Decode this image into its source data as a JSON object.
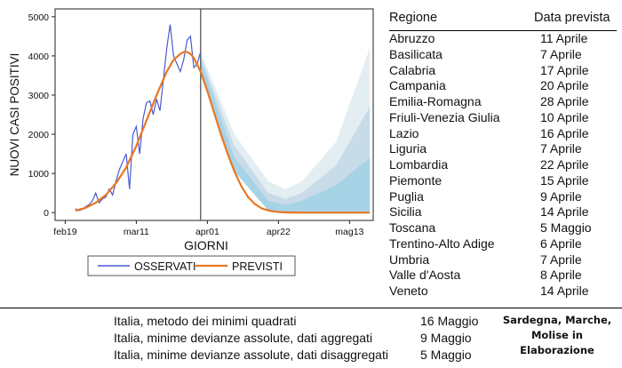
{
  "chart_data": {
    "type": "line",
    "xlabel": "GIORNI",
    "ylabel": "NUOVI CASI POSITIVI",
    "ylim": [
      -200,
      5200
    ],
    "yticks": [
      0,
      1000,
      2000,
      3000,
      4000,
      5000
    ],
    "x_tick_labels": [
      {
        "day": 0,
        "label": "feb19"
      },
      {
        "day": 21,
        "label": "mar11"
      },
      {
        "day": 42,
        "label": "apr01"
      },
      {
        "day": 63,
        "label": "apr22"
      },
      {
        "day": 84,
        "label": "mag13"
      }
    ],
    "xlim": [
      -3,
      91
    ],
    "vertical_marker_day": 40,
    "legend": {
      "position": "bottom",
      "entries": [
        "OSSERVATI",
        "PREVISTI"
      ]
    },
    "series": [
      {
        "name": "OSSERVATI",
        "color": "#4a5bd0",
        "x": [
          3,
          4,
          5,
          6,
          7,
          8,
          9,
          10,
          11,
          12,
          13,
          14,
          15,
          16,
          17,
          18,
          19,
          20,
          21,
          22,
          23,
          24,
          25,
          26,
          27,
          28,
          29,
          30,
          31,
          32,
          33,
          34,
          35,
          36,
          37,
          38,
          39,
          40
        ],
        "values": [
          100,
          50,
          80,
          150,
          200,
          300,
          500,
          250,
          350,
          400,
          600,
          450,
          800,
          1100,
          1300,
          1500,
          600,
          2000,
          2200,
          1500,
          2400,
          2800,
          2850,
          2500,
          2900,
          2600,
          3400,
          4200,
          4800,
          4000,
          3800,
          3600,
          3900,
          4400,
          4500,
          3700,
          3800,
          4100
        ]
      },
      {
        "name": "PREVISTI",
        "color": "#e87722",
        "x": [
          3,
          6,
          9,
          12,
          15,
          18,
          21,
          24,
          27,
          30,
          32,
          34,
          35,
          36,
          37,
          38,
          40,
          42,
          44,
          46,
          48,
          50,
          52,
          54,
          56,
          58,
          60,
          62,
          64,
          66,
          68,
          70,
          75,
          80,
          85,
          90
        ],
        "values": [
          50,
          120,
          250,
          450,
          750,
          1150,
          1700,
          2350,
          3000,
          3600,
          3900,
          4050,
          4100,
          4100,
          4050,
          3950,
          3600,
          3100,
          2550,
          2000,
          1500,
          1050,
          680,
          400,
          220,
          110,
          55,
          25,
          10,
          5,
          2,
          0,
          0,
          0,
          0,
          0
        ]
      }
    ],
    "bands": [
      {
        "name": "outer",
        "color": "#e3eef2",
        "x": [
          40,
          50,
          60,
          65,
          70,
          80,
          90
        ],
        "upper": [
          4100,
          2000,
          800,
          600,
          800,
          1800,
          4200
        ],
        "lower": [
          3600,
          1050,
          55,
          5,
          0,
          0,
          0
        ]
      },
      {
        "name": "middle",
        "color": "#c8dbe8",
        "x": [
          40,
          50,
          60,
          65,
          70,
          80,
          90
        ],
        "upper": [
          4000,
          1700,
          500,
          350,
          500,
          1200,
          2700
        ],
        "lower": [
          3600,
          1050,
          55,
          5,
          0,
          0,
          0
        ]
      },
      {
        "name": "inner",
        "color": "#a6d3e6",
        "x": [
          40,
          50,
          60,
          65,
          70,
          80,
          90
        ],
        "upper": [
          3900,
          1400,
          300,
          200,
          300,
          700,
          1400
        ],
        "lower": [
          3600,
          1050,
          55,
          5,
          0,
          0,
          0
        ]
      }
    ]
  },
  "table": {
    "header": {
      "region": "Regione",
      "date": "Data prevista"
    },
    "rows": [
      {
        "region": "Abruzzo",
        "date": "11 Aprile"
      },
      {
        "region": "Basilicata",
        "date": "7 Aprile"
      },
      {
        "region": "Calabria",
        "date": "17 Aprile"
      },
      {
        "region": "Campania",
        "date": "20 Aprile"
      },
      {
        "region": "Emilia-Romagna",
        "date": "28 Aprile"
      },
      {
        "region": "Friuli-Venezia Giulia",
        "date": "10 Aprile"
      },
      {
        "region": "Lazio",
        "date": "16 Aprile"
      },
      {
        "region": "Liguria",
        "date": "7 Aprile"
      },
      {
        "region": "Lombardia",
        "date": "22 Aprile"
      },
      {
        "region": "Piemonte",
        "date": "15 Aprile"
      },
      {
        "region": "Puglia",
        "date": "9 Aprile"
      },
      {
        "region": "Sicilia",
        "date": "14 Aprile"
      },
      {
        "region": "Toscana",
        "date": "5 Maggio"
      },
      {
        "region": "Trentino-Alto Adige",
        "date": "6 Aprile"
      },
      {
        "region": "Umbria",
        "date": "7 Aprile"
      },
      {
        "region": "Valle d'Aosta",
        "date": "8 Aprile"
      },
      {
        "region": "Veneto",
        "date": "14 Aprile"
      }
    ]
  },
  "methods": [
    {
      "label": "Italia, metodo dei minimi quadrati",
      "date": "16 Maggio"
    },
    {
      "label": "Italia, minime devianze assolute, dati aggregati",
      "date": "9 Maggio"
    },
    {
      "label": "Italia, minime devianze assolute, dati disaggregati",
      "date": "5 Maggio"
    }
  ],
  "note": {
    "line1": "Sardegna, Marche,",
    "line2": "Molise in",
    "line3": "Elaborazione"
  }
}
